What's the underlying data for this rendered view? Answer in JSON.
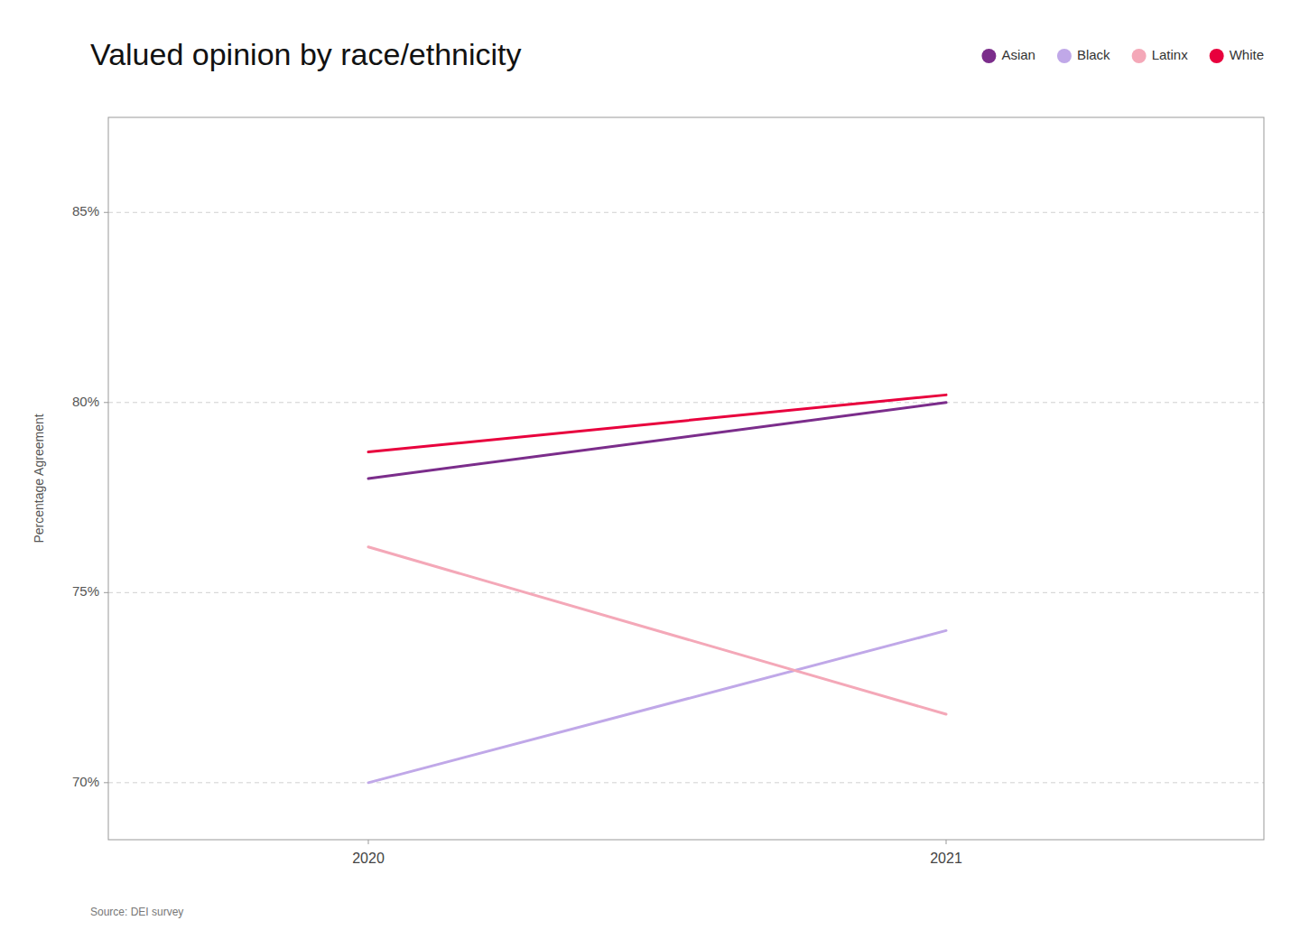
{
  "chart_data": {
    "type": "line",
    "title": "Valued opinion by race/ethnicity",
    "source": "Source: DEI survey",
    "ylabel": "Percentage Agreement",
    "x": [
      2020,
      2021
    ],
    "xlim": [
      2019.55,
      2021.55
    ],
    "xticks": [
      2020,
      2021
    ],
    "ylim": [
      68.5,
      87.5
    ],
    "yticks": [
      {
        "value": 70,
        "label": "70%"
      },
      {
        "value": 75,
        "label": "75%"
      },
      {
        "value": 80,
        "label": "80%"
      },
      {
        "value": 85,
        "label": "85%"
      }
    ],
    "grid": true,
    "legend": "upper right",
    "series": [
      {
        "name": "Asian",
        "color": "#7B2D8B",
        "values": [
          78.0,
          80.0
        ]
      },
      {
        "name": "Black",
        "color": "#C0A8E8",
        "values": [
          70.0,
          74.0
        ]
      },
      {
        "name": "Latinx",
        "color": "#F4A8B8",
        "values": [
          76.2,
          71.8
        ]
      },
      {
        "name": "White",
        "color": "#E8003D",
        "values": [
          78.7,
          80.2
        ]
      }
    ]
  }
}
